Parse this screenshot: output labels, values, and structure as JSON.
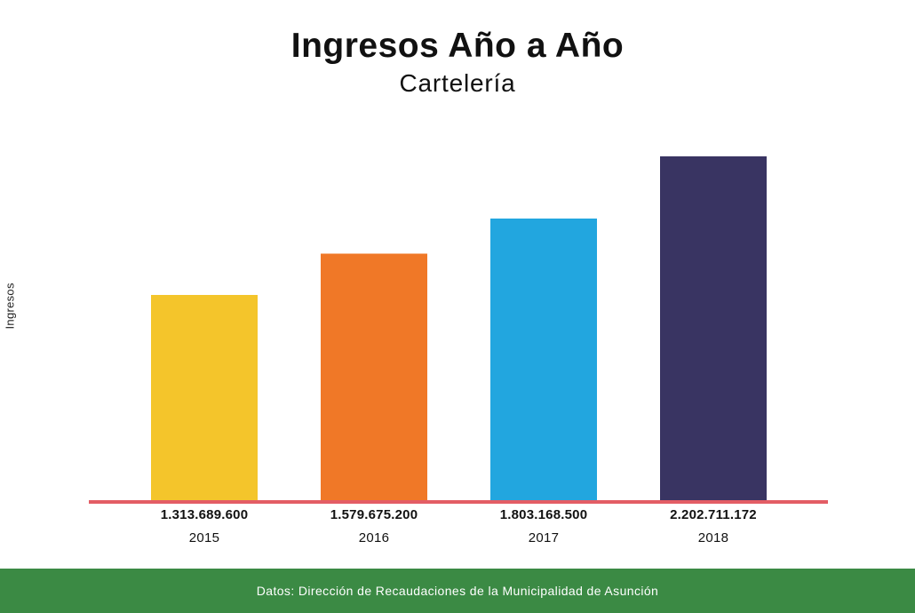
{
  "header": {
    "title": "Ingresos Año a Año",
    "subtitle": "Cartelería"
  },
  "footer": {
    "source": "Datos: Dirección de Recaudaciones de la Municipalidad de Asunción"
  },
  "colors": {
    "baseline": "#e35d65",
    "footer_bg": "#3b8a44",
    "bars": [
      "#f4c52b",
      "#f07827",
      "#22a6df",
      "#393462"
    ]
  },
  "chart_data": {
    "type": "bar",
    "title": "Ingresos Año a Año",
    "subtitle": "Cartelería",
    "ylabel": "Ingresos",
    "categories": [
      "2015",
      "2016",
      "2017",
      "2018"
    ],
    "values": [
      1313689600,
      1579675200,
      1803168500,
      2202711172
    ],
    "value_labels": [
      "1.313.689.600",
      "1.579.675.200",
      "1.803.168.500",
      "2.202.711.172"
    ],
    "ylim": [
      0,
      2600000000
    ],
    "grid": false,
    "legend": "none"
  }
}
